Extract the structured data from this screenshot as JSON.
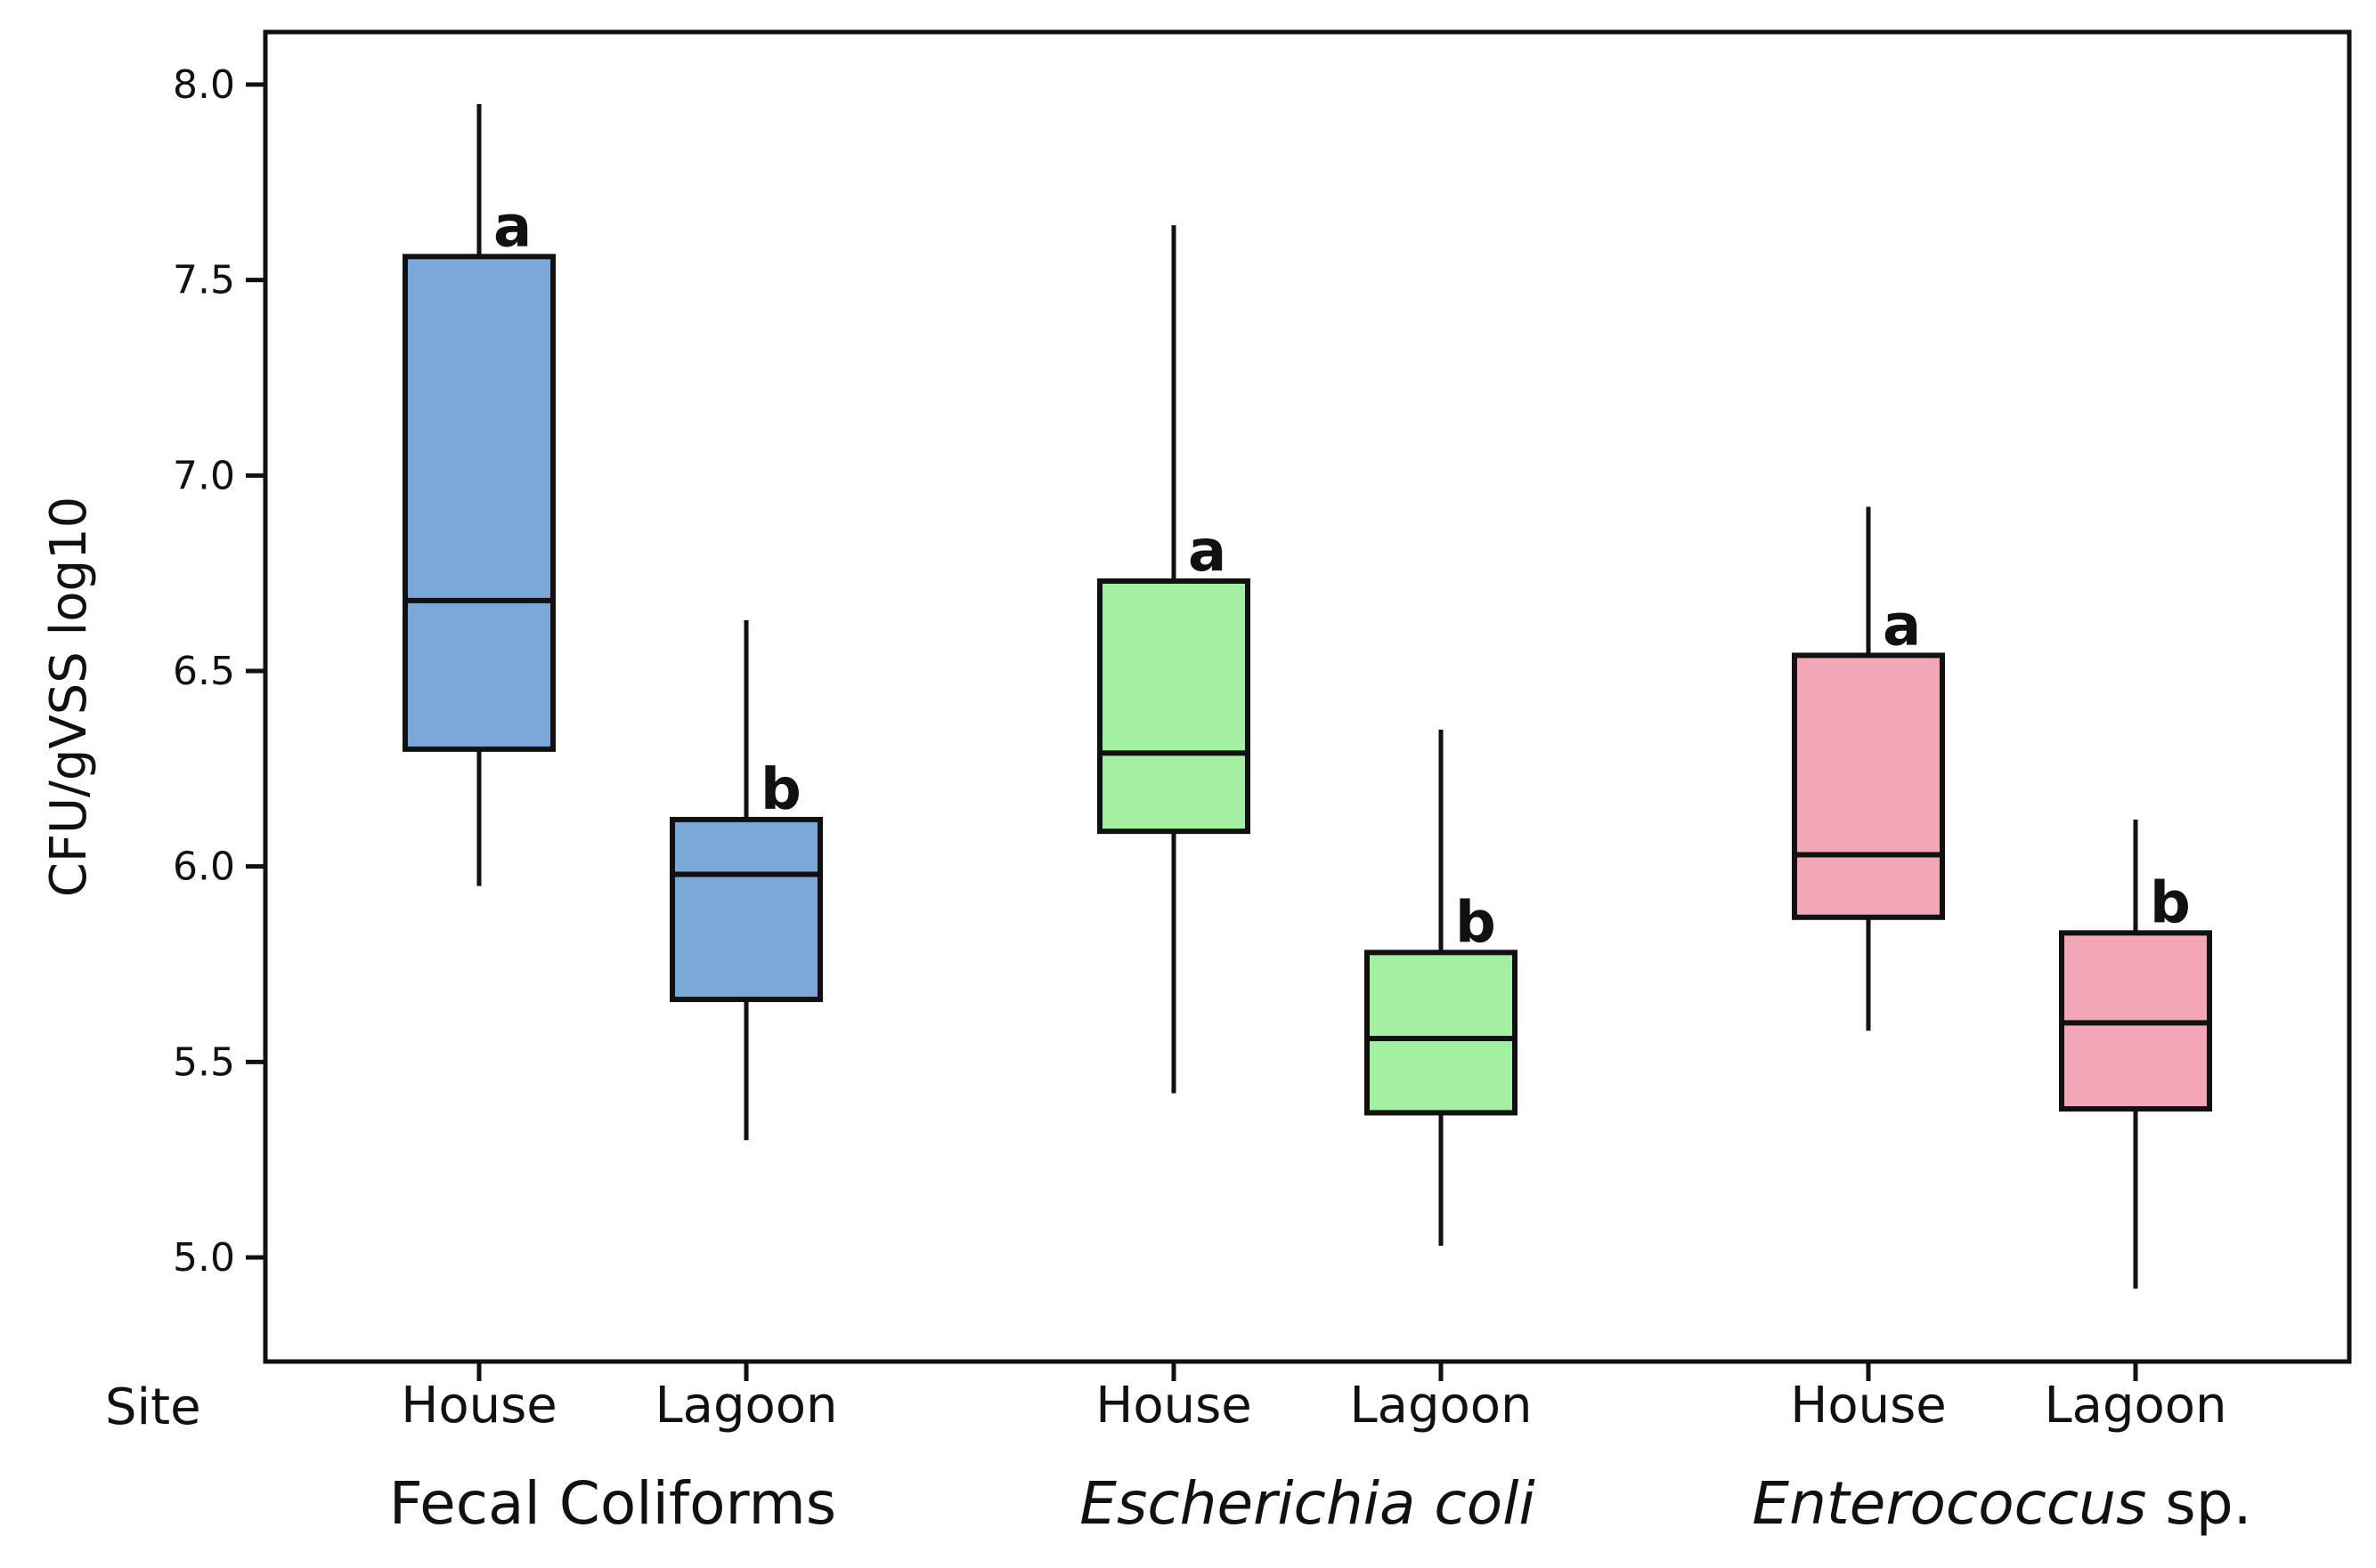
{
  "chart_data": {
    "type": "boxplot",
    "ylabel": "CFU/gVSS log10",
    "ylim": [
      4.8,
      8.15
    ],
    "yticks": [
      5.0,
      5.5,
      6.0,
      6.5,
      7.0,
      7.5,
      8.0
    ],
    "ytick_labels": [
      "5.0",
      "5.5",
      "6.0",
      "6.5",
      "7.0",
      "7.5",
      "8.0"
    ],
    "x_axis_title": "Site",
    "groups": [
      {
        "label": "Fecal Coliforms",
        "italic_part": "",
        "plain_part": "Fecal Coliforms",
        "color": "#7ba7d9",
        "boxes": [
          {
            "site": "House",
            "min": 5.95,
            "q1": 6.3,
            "median": 6.68,
            "q3": 7.56,
            "max": 7.95,
            "letter": "a"
          },
          {
            "site": "Lagoon",
            "min": 5.3,
            "q1": 5.66,
            "median": 5.98,
            "q3": 6.12,
            "max": 6.63,
            "letter": "b"
          }
        ]
      },
      {
        "label": "Escherichia coli",
        "italic_part": "Escherichia coli",
        "plain_part": "",
        "color": "#a3f0a3",
        "boxes": [
          {
            "site": "House",
            "min": 5.42,
            "q1": 6.09,
            "median": 6.29,
            "q3": 6.73,
            "max": 7.64,
            "letter": "a"
          },
          {
            "site": "Lagoon",
            "min": 5.03,
            "q1": 5.37,
            "median": 5.56,
            "q3": 5.78,
            "max": 6.35,
            "letter": "b"
          }
        ]
      },
      {
        "label": "Enterococcus sp.",
        "italic_part": "Enterococcus",
        "plain_part": " sp.",
        "color": "#f2a6b6",
        "boxes": [
          {
            "site": "House",
            "min": 5.58,
            "q1": 5.87,
            "median": 6.03,
            "q3": 6.54,
            "max": 6.92,
            "letter": "a"
          },
          {
            "site": "Lagoon",
            "min": 4.92,
            "q1": 5.38,
            "median": 5.6,
            "q3": 5.83,
            "max": 6.12,
            "letter": "b"
          }
        ]
      }
    ]
  }
}
